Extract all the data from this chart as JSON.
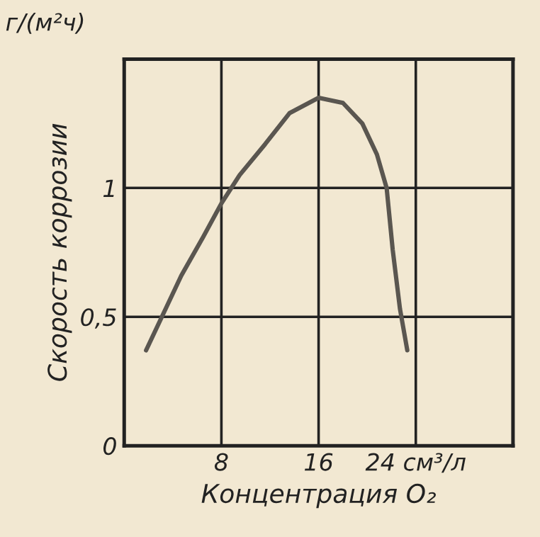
{
  "chart_data": {
    "type": "line",
    "xlabel": "Концентрация O₂",
    "ylabel": "Скорость коррозии",
    "annotations": [
      "г/(м²ч)"
    ],
    "series": [
      {
        "color": "#5a5650",
        "x": [
          1.8,
          2.9,
          4.7,
          6.5,
          8,
          9.5,
          11.6,
          13.6,
          16,
          18,
          19.6,
          20.8,
          21.6,
          22.1,
          22.7,
          23.3
        ],
        "values": [
          0.37,
          0.48,
          0.66,
          0.81,
          0.94,
          1.05,
          1.17,
          1.29,
          1.35,
          1.33,
          1.25,
          1.13,
          1.0,
          0.76,
          0.53,
          0.37
        ]
      }
    ],
    "xlim": [
      0,
      32
    ],
    "xticks": [
      8,
      16,
      {
        "value": 24,
        "label": "24 см³/л"
      }
    ],
    "ylim": [
      0,
      1.5
    ],
    "yticks": [
      0,
      {
        "value": 0.5,
        "label": "0,5"
      },
      1
    ],
    "grid": true,
    "marker": "none",
    "line_style": "solid"
  }
}
